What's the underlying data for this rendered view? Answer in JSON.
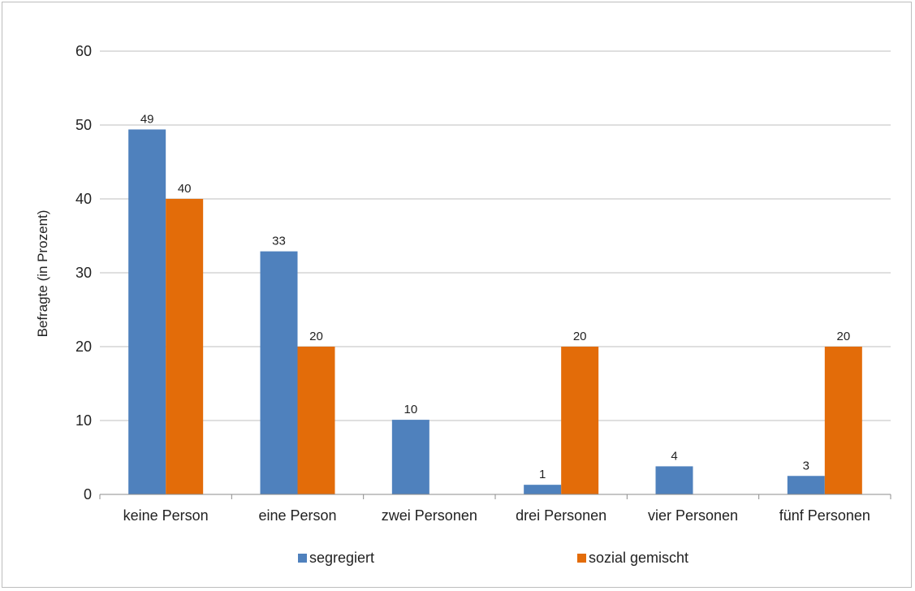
{
  "chart_data": {
    "type": "bar",
    "title": "",
    "xlabel": "",
    "ylabel": "Befragte (in Prozent)",
    "ylim": [
      0,
      60
    ],
    "yticks": [
      0,
      10,
      20,
      30,
      40,
      50,
      60
    ],
    "grid": true,
    "legend": "bottom",
    "categories": [
      "keine Person",
      "eine Person",
      "zwei Personen",
      "drei Personen",
      "vier Personen",
      "fünf Personen"
    ],
    "series": [
      {
        "name": "segregiert",
        "color": "#4f81bd",
        "values": [
          49.4,
          32.9,
          10.1,
          1.3,
          3.8,
          2.5
        ],
        "labels": [
          "49",
          "33",
          "10",
          "1",
          "4",
          "3"
        ]
      },
      {
        "name": "sozial gemischt",
        "color": "#e36c09",
        "values": [
          40,
          20,
          0,
          20,
          0,
          20
        ],
        "labels": [
          "40",
          "20",
          "",
          "20",
          "",
          "20"
        ]
      }
    ]
  }
}
